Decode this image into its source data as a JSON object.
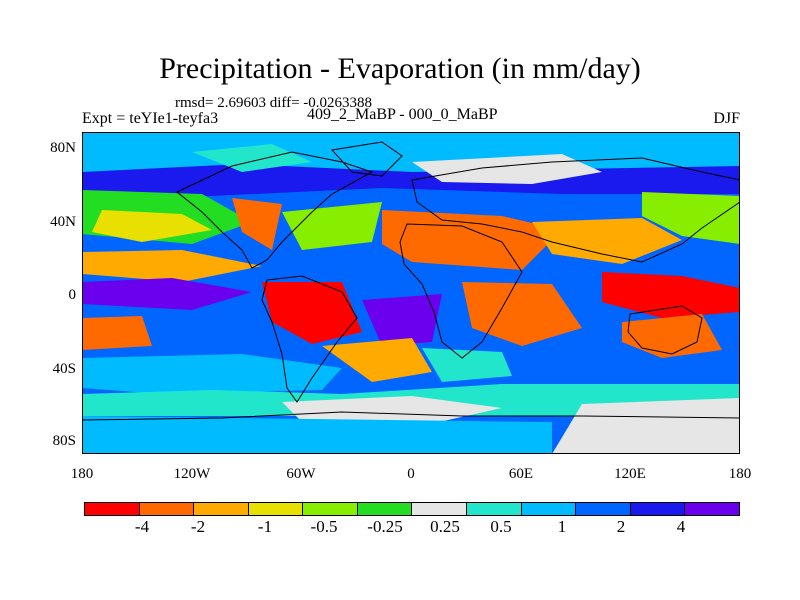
{
  "header": {
    "title": "Precipitation - Evaporation (in mm/day)",
    "stats": "rmsd= 2.69603 diff= -0.0263388",
    "expt": "Expt = teYIe1-teyfa3",
    "subtitle": "409_2_MaBP - 000_0_MaBP",
    "season": "DJF"
  },
  "axes": {
    "y_ticks": [
      "80N",
      "40N",
      "0",
      "40S",
      "80S"
    ],
    "x_ticks": [
      "180",
      "120W",
      "60W",
      "0",
      "60E",
      "120E",
      "180"
    ]
  },
  "colorbar": {
    "colors": [
      "#ff0000",
      "#ff6a00",
      "#ffaa00",
      "#e8e000",
      "#88ee00",
      "#22dd22",
      "#e6e6e6",
      "#22e6cc",
      "#00bbff",
      "#0066ff",
      "#1a1aee",
      "#6a00ee"
    ],
    "labels": [
      "-4",
      "-2",
      "-1",
      "-0.5",
      "-0.25",
      "0.25",
      "0.5",
      "1",
      "2",
      "4"
    ]
  },
  "chart_data": {
    "type": "heatmap",
    "title": "Precipitation - Evaporation (in mm/day)",
    "xlabel": "",
    "ylabel": "",
    "x_ticks": [
      "180",
      "120W",
      "60W",
      "0",
      "60E",
      "120E",
      "180"
    ],
    "y_ticks": [
      "80N",
      "40N",
      "0",
      "40S",
      "80S"
    ],
    "xlim": [
      -180,
      180
    ],
    "ylim": [
      -90,
      90
    ],
    "levels": [
      -4,
      -2,
      -1,
      -0.5,
      -0.25,
      0.25,
      0.5,
      1,
      2,
      4
    ]
  }
}
